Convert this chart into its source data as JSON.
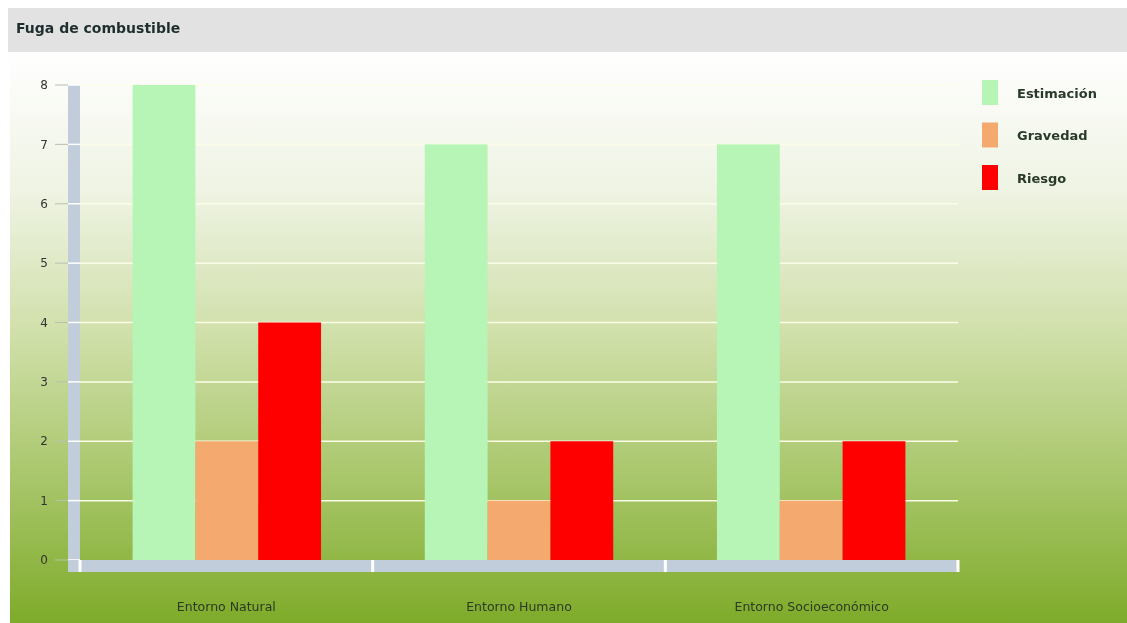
{
  "chart_data": {
    "type": "bar",
    "title": "Fuga de combustible",
    "categories": [
      "Entorno Natural",
      "Entorno Humano",
      "Entorno Socioeconómico"
    ],
    "series": [
      {
        "name": "Estimación",
        "color": "#b6f5b6",
        "values": [
          8,
          7,
          7
        ]
      },
      {
        "name": "Gravedad",
        "color": "#f4aa6e",
        "values": [
          2,
          1,
          1
        ]
      },
      {
        "name": "Riesgo",
        "color": "#ff0000",
        "values": [
          4,
          2,
          2
        ]
      }
    ],
    "ylim": [
      0,
      8
    ],
    "yticks": [
      0,
      1,
      2,
      3,
      4,
      5,
      6,
      7,
      8
    ],
    "grid": "y",
    "legend": "top right"
  }
}
